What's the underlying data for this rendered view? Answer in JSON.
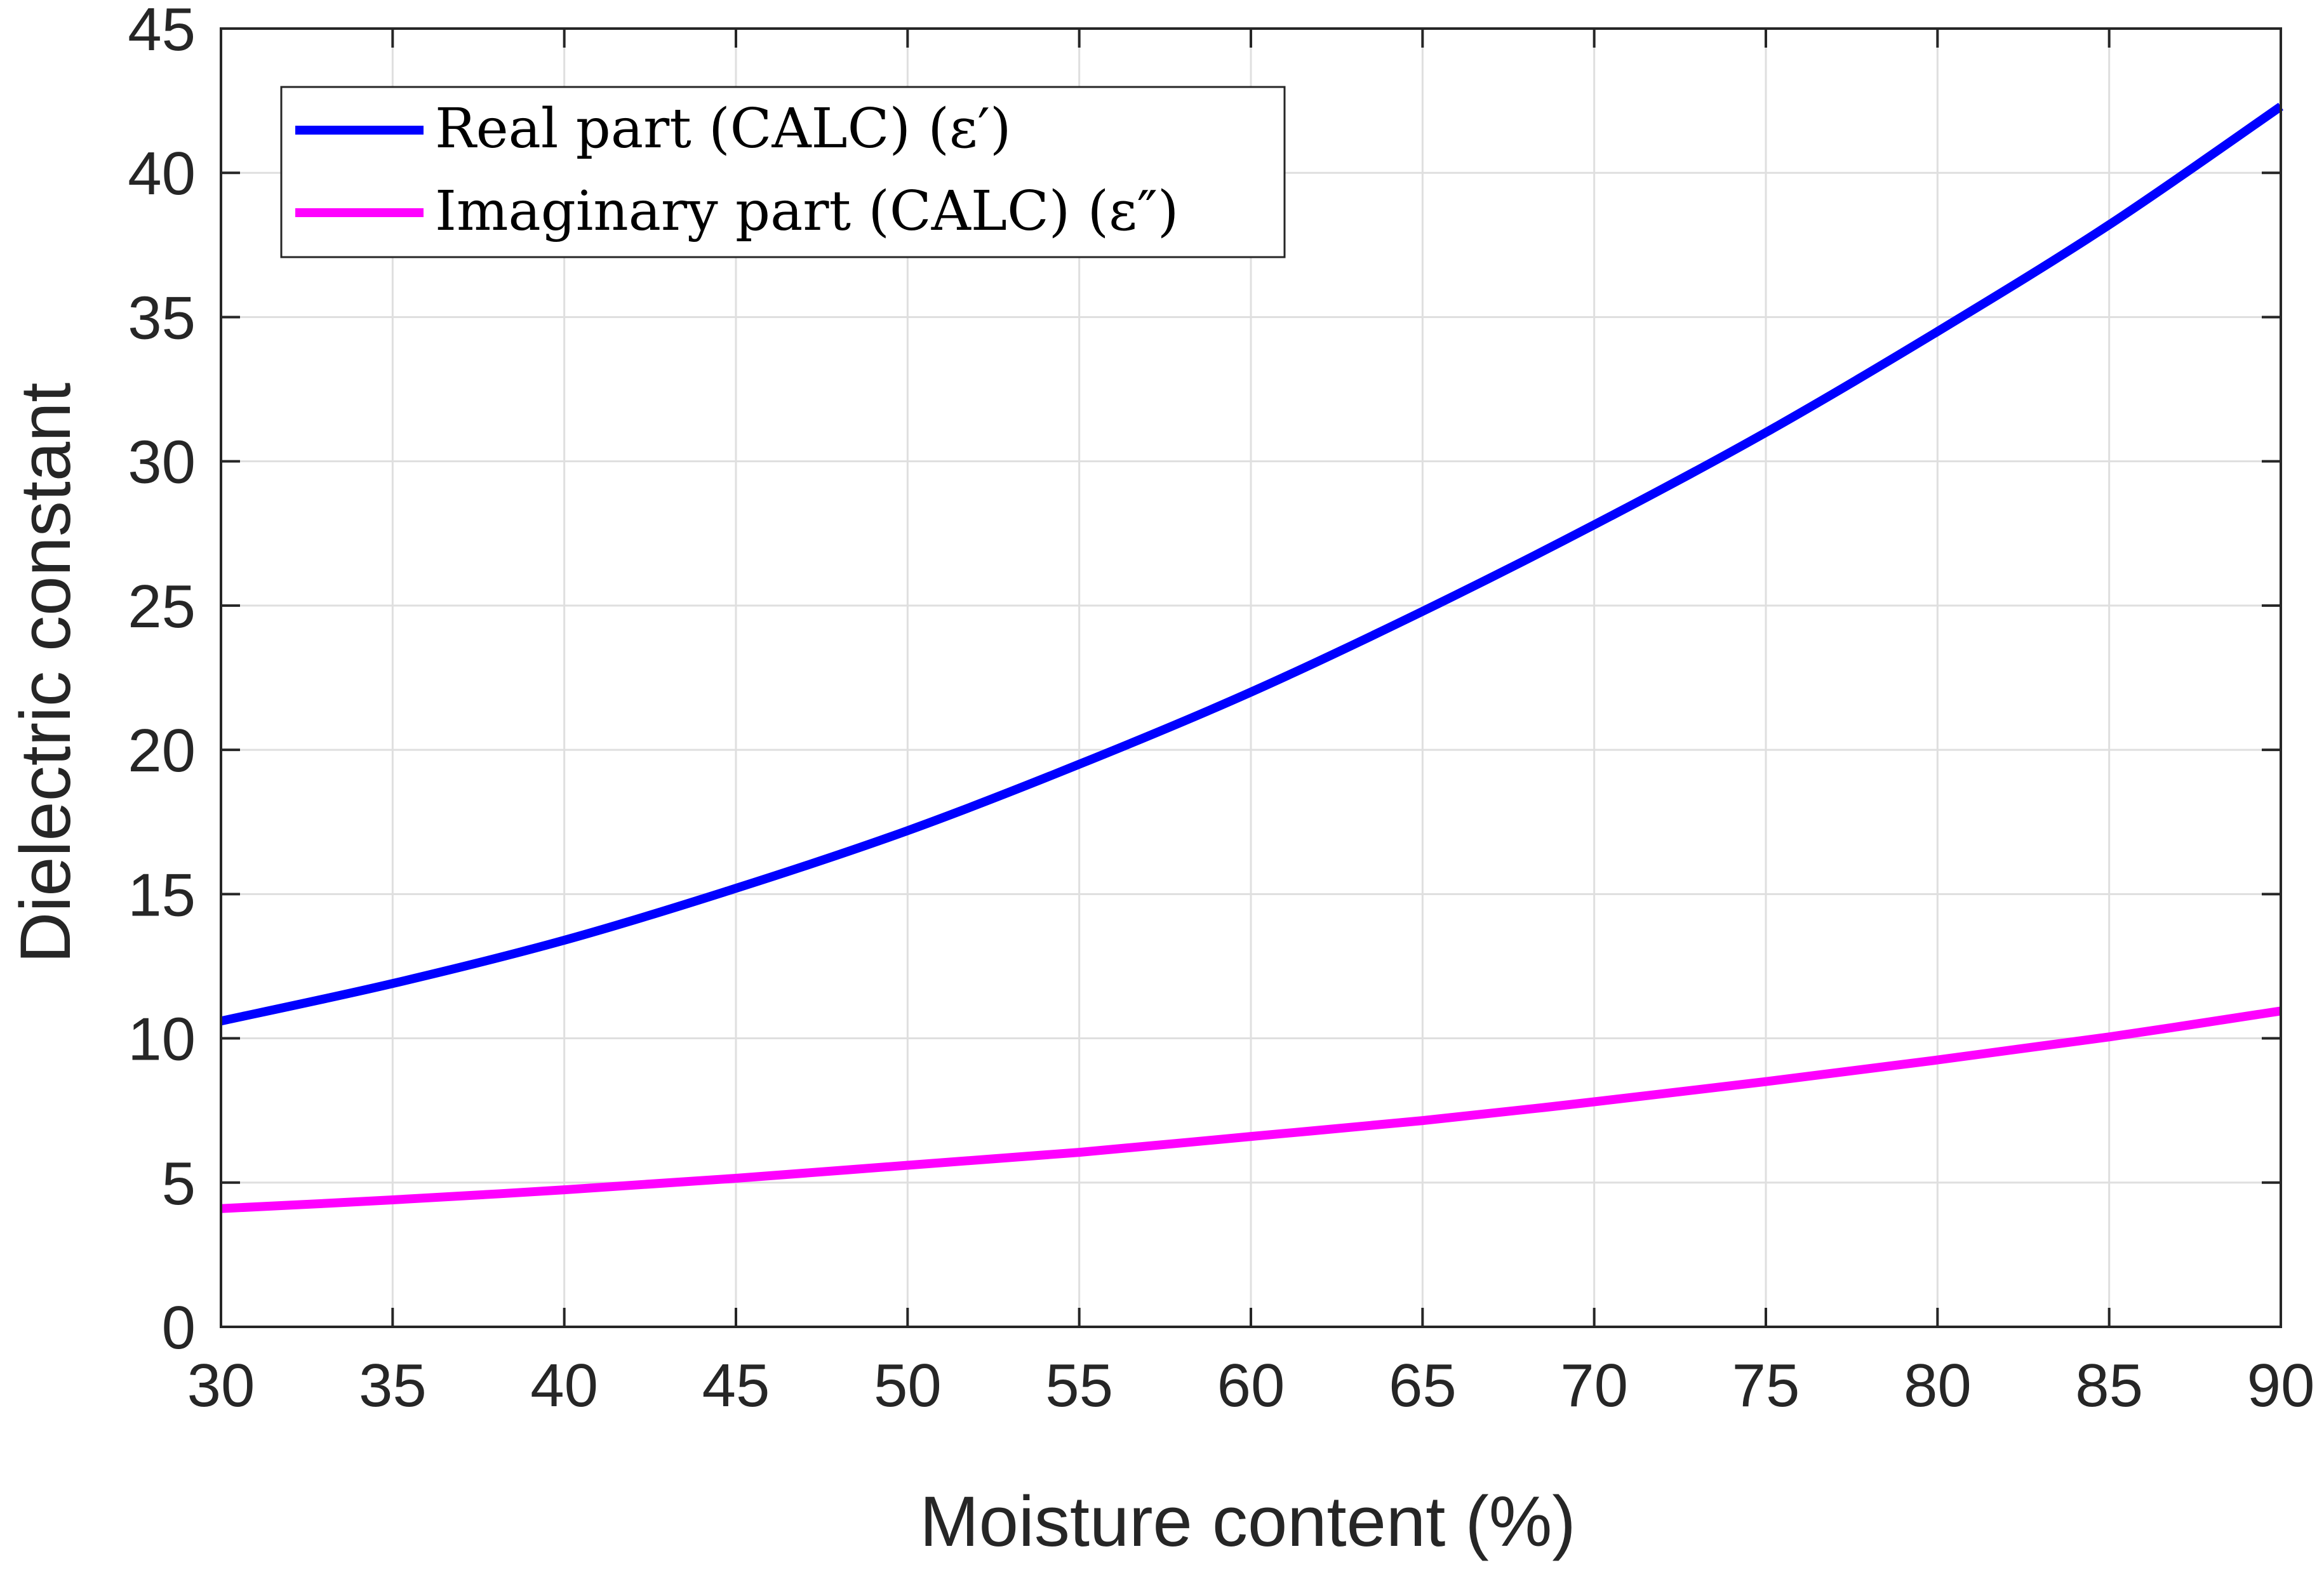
{
  "chart_data": {
    "type": "line",
    "title": "",
    "xlabel": "Moisture content (%)",
    "ylabel": "Dielectric constant",
    "xlim": [
      30,
      90
    ],
    "ylim": [
      0,
      45
    ],
    "xticks": [
      30,
      35,
      40,
      45,
      50,
      55,
      60,
      65,
      70,
      75,
      80,
      85,
      90
    ],
    "yticks": [
      0,
      5,
      10,
      15,
      20,
      25,
      30,
      35,
      40,
      45
    ],
    "grid": true,
    "legend_position": "top-left",
    "series": [
      {
        "name": "Real part (CALC) (ε′)",
        "color": "#0000ff",
        "x": [
          30,
          35,
          40,
          45,
          50,
          55,
          60,
          65,
          70,
          75,
          80,
          85,
          90
        ],
        "y": [
          10.6,
          11.9,
          13.4,
          15.2,
          17.2,
          19.5,
          22.0,
          24.8,
          27.8,
          31.0,
          34.5,
          38.2,
          42.3
        ]
      },
      {
        "name": "Imaginary part (CALC) (ε″)",
        "color": "#ff00ff",
        "x": [
          30,
          35,
          40,
          45,
          50,
          55,
          60,
          65,
          70,
          75,
          80,
          85,
          90
        ],
        "y": [
          4.1,
          4.4,
          4.75,
          5.15,
          5.6,
          6.05,
          6.6,
          7.15,
          7.8,
          8.5,
          9.25,
          10.05,
          10.95
        ]
      }
    ]
  }
}
